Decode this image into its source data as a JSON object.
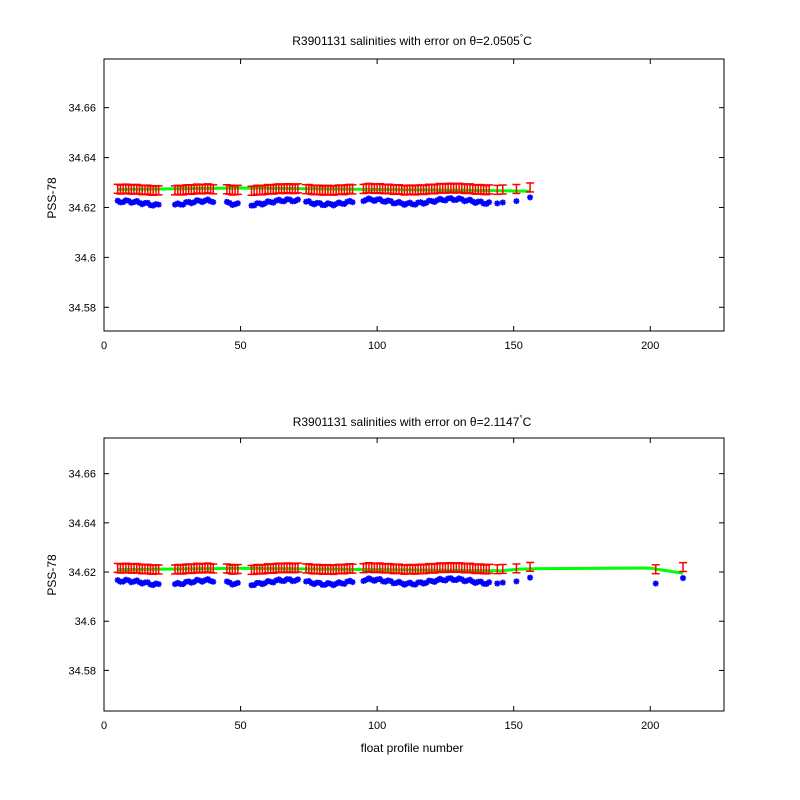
{
  "figure": {
    "background": "#ffffff",
    "colors": {
      "raw": "#0000ff",
      "calibrated": "#ff0000",
      "mapped": "#00ff00",
      "axes": "#000000"
    }
  },
  "chart_data": [
    {
      "type": "scatter",
      "title": "R3901131 salinities with error on θ=2.0505°C",
      "title_main": "R3901131 salinities with error on θ=2.0505",
      "title_deg": "°",
      "title_unit": "C",
      "xlabel": "",
      "ylabel": "PSS-78",
      "xlim": [
        0,
        227
      ],
      "ylim": [
        34.5705,
        34.6795
      ],
      "xticks": [
        0,
        50,
        100,
        150,
        200
      ],
      "yticks": [
        34.58,
        34.6,
        34.62,
        34.64,
        34.66
      ],
      "xtick_labels": [
        "0",
        "50",
        "100",
        "150",
        "200"
      ],
      "ytick_labels": [
        "34.58",
        "34.6",
        "34.62",
        "34.64",
        "34.66"
      ],
      "groups": [
        [
          5,
          20
        ],
        [
          26,
          40
        ],
        [
          45,
          49
        ],
        [
          54,
          71
        ],
        [
          74,
          91
        ],
        [
          95,
          140
        ]
      ],
      "sparse_x": [
        141,
        144,
        146,
        151,
        156
      ],
      "last_profile": 156,
      "raw_base": 34.6215,
      "cal_offset": 0.0055,
      "err": 0.0018,
      "mapped_line": [
        [
          5,
          34.6272
        ],
        [
          50,
          34.6278
        ],
        [
          100,
          34.6272
        ],
        [
          140,
          34.6268
        ],
        [
          156,
          34.6265
        ]
      ]
    },
    {
      "type": "scatter",
      "title": "R3901131 salinities with error on θ=2.1147°C",
      "title_main": "R3901131 salinities with error on θ=2.1147",
      "title_deg": "°",
      "title_unit": "C",
      "xlabel": "float profile number",
      "ylabel": "PSS-78",
      "xlim": [
        0,
        227
      ],
      "ylim": [
        34.5635,
        34.6745
      ],
      "xticks": [
        0,
        50,
        100,
        150,
        200
      ],
      "yticks": [
        34.58,
        34.6,
        34.62,
        34.64,
        34.66
      ],
      "xtick_labels": [
        "0",
        "50",
        "100",
        "150",
        "200"
      ],
      "ytick_labels": [
        "34.58",
        "34.6",
        "34.62",
        "34.64",
        "34.66"
      ],
      "groups": [
        [
          5,
          20
        ],
        [
          26,
          40
        ],
        [
          45,
          49
        ],
        [
          54,
          71
        ],
        [
          74,
          91
        ],
        [
          95,
          140
        ]
      ],
      "sparse_x": [
        141,
        144,
        146,
        151,
        156,
        202,
        212
      ],
      "last_profile": 212,
      "raw_base": 34.6155,
      "cal_offset": 0.0057,
      "err": 0.0018,
      "mapped_line": [
        [
          5,
          34.621
        ],
        [
          50,
          34.6215
        ],
        [
          100,
          34.621
        ],
        [
          145,
          34.6205
        ],
        [
          152,
          34.6212
        ],
        [
          160,
          34.6214
        ],
        [
          200,
          34.6216
        ],
        [
          212,
          34.6195
        ]
      ]
    }
  ]
}
